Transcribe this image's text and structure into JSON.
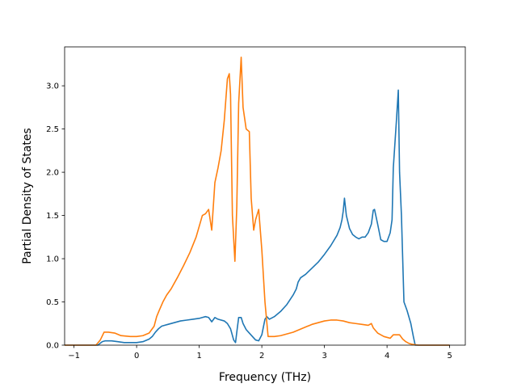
{
  "chart_data": {
    "type": "line",
    "title": "",
    "xlabel": "Frequency (THz)",
    "ylabel": "Partial Density of States",
    "xlim": [
      -1.15,
      5.25
    ],
    "ylim": [
      0.0,
      3.45
    ],
    "xticks": [
      -1,
      0,
      1,
      2,
      3,
      4,
      5
    ],
    "xtick_labels": [
      "−1",
      "0",
      "1",
      "2",
      "3",
      "4",
      "5"
    ],
    "yticks": [
      0.0,
      0.5,
      1.0,
      1.5,
      2.0,
      2.5,
      3.0
    ],
    "ytick_labels": [
      "0.0",
      "0.5",
      "1.0",
      "1.5",
      "2.0",
      "2.5",
      "3.0"
    ],
    "grid": false,
    "legend": "none",
    "series": [
      {
        "color": "#1f77b4",
        "x": [
          -1.15,
          -0.62,
          -0.55,
          -0.5,
          -0.4,
          -0.3,
          -0.2,
          -0.1,
          0.0,
          0.1,
          0.2,
          0.25,
          0.3,
          0.35,
          0.4,
          0.45,
          0.5,
          0.6,
          0.7,
          0.8,
          0.9,
          1.0,
          1.05,
          1.1,
          1.15,
          1.2,
          1.25,
          1.3,
          1.4,
          1.45,
          1.5,
          1.55,
          1.58,
          1.6,
          1.63,
          1.67,
          1.7,
          1.75,
          1.8,
          1.85,
          1.9,
          1.95,
          2.0,
          2.05,
          2.08,
          2.12,
          2.2,
          2.3,
          2.4,
          2.5,
          2.55,
          2.58,
          2.62,
          2.7,
          2.8,
          2.9,
          3.0,
          3.1,
          3.2,
          3.25,
          3.28,
          3.3,
          3.32,
          3.35,
          3.4,
          3.45,
          3.5,
          3.55,
          3.6,
          3.65,
          3.7,
          3.75,
          3.78,
          3.8,
          3.85,
          3.9,
          3.95,
          4.0,
          4.05,
          4.08,
          4.1,
          4.15,
          4.18,
          4.2,
          4.23,
          4.27,
          4.32,
          4.38,
          4.42,
          4.45,
          4.5,
          5.0
        ],
        "values": [
          0.0,
          0.0,
          0.04,
          0.05,
          0.05,
          0.04,
          0.03,
          0.03,
          0.03,
          0.04,
          0.07,
          0.1,
          0.15,
          0.19,
          0.22,
          0.23,
          0.24,
          0.26,
          0.28,
          0.29,
          0.3,
          0.31,
          0.32,
          0.33,
          0.32,
          0.27,
          0.32,
          0.3,
          0.28,
          0.25,
          0.19,
          0.06,
          0.03,
          0.15,
          0.32,
          0.32,
          0.25,
          0.18,
          0.14,
          0.1,
          0.06,
          0.05,
          0.12,
          0.3,
          0.33,
          0.3,
          0.33,
          0.39,
          0.47,
          0.58,
          0.65,
          0.73,
          0.78,
          0.82,
          0.89,
          0.96,
          1.05,
          1.15,
          1.27,
          1.36,
          1.45,
          1.55,
          1.7,
          1.5,
          1.35,
          1.28,
          1.25,
          1.23,
          1.25,
          1.25,
          1.3,
          1.4,
          1.56,
          1.57,
          1.4,
          1.22,
          1.2,
          1.2,
          1.3,
          1.45,
          2.05,
          2.6,
          2.95,
          2.0,
          1.5,
          0.5,
          0.4,
          0.25,
          0.1,
          0.0,
          0.0,
          0.0
        ]
      },
      {
        "color": "#ff7f0e",
        "x": [
          -1.15,
          -0.65,
          -0.58,
          -0.52,
          -0.45,
          -0.35,
          -0.25,
          -0.1,
          0.0,
          0.1,
          0.2,
          0.28,
          0.32,
          0.36,
          0.42,
          0.48,
          0.55,
          0.65,
          0.75,
          0.85,
          0.95,
          1.05,
          1.1,
          1.15,
          1.2,
          1.25,
          1.3,
          1.35,
          1.4,
          1.45,
          1.48,
          1.5,
          1.53,
          1.57,
          1.6,
          1.63,
          1.67,
          1.7,
          1.75,
          1.8,
          1.83,
          1.87,
          1.9,
          1.95,
          2.0,
          2.05,
          2.1,
          2.2,
          2.3,
          2.4,
          2.5,
          2.6,
          2.7,
          2.8,
          2.9,
          3.0,
          3.1,
          3.2,
          3.3,
          3.4,
          3.5,
          3.6,
          3.7,
          3.75,
          3.78,
          3.85,
          3.95,
          4.05,
          4.1,
          4.2,
          4.25,
          4.3,
          4.35,
          4.4,
          4.5,
          5.0
        ],
        "values": [
          0.0,
          0.0,
          0.06,
          0.15,
          0.15,
          0.14,
          0.11,
          0.1,
          0.1,
          0.11,
          0.14,
          0.22,
          0.33,
          0.4,
          0.5,
          0.58,
          0.65,
          0.78,
          0.92,
          1.07,
          1.25,
          1.5,
          1.52,
          1.57,
          1.33,
          1.88,
          2.05,
          2.25,
          2.6,
          3.08,
          3.14,
          2.9,
          1.5,
          0.97,
          1.6,
          2.8,
          3.33,
          2.75,
          2.5,
          2.47,
          1.7,
          1.33,
          1.45,
          1.57,
          1.1,
          0.5,
          0.1,
          0.1,
          0.11,
          0.13,
          0.15,
          0.18,
          0.21,
          0.24,
          0.26,
          0.28,
          0.29,
          0.29,
          0.28,
          0.26,
          0.25,
          0.24,
          0.23,
          0.25,
          0.2,
          0.14,
          0.1,
          0.08,
          0.12,
          0.12,
          0.07,
          0.04,
          0.02,
          0.01,
          0.0,
          0.0
        ]
      }
    ]
  }
}
